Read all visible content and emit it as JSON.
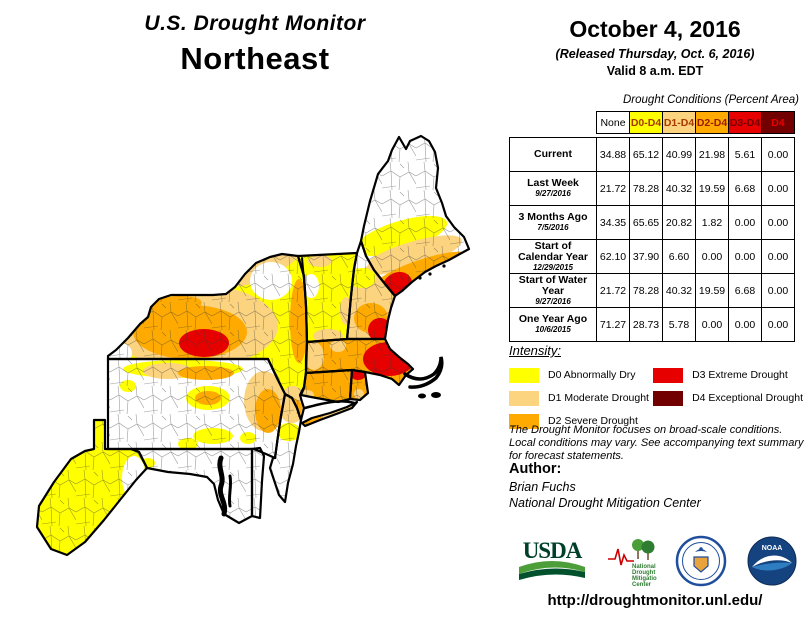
{
  "title": {
    "line1": "U.S. Drought Monitor",
    "line2": "Northeast"
  },
  "date_block": {
    "date": "October 4, 2016",
    "released": "(Released Thursday, Oct. 6, 2016)",
    "valid": "Valid  8 a.m. EDT"
  },
  "table": {
    "caption": "Drought Conditions (Percent Area)",
    "columns": [
      {
        "label": "None",
        "bg": "#FFFFFF",
        "fg": "#000000"
      },
      {
        "label": "D0-D4",
        "bg": "#FFFF00",
        "fg": "#A63A00"
      },
      {
        "label": "D1-D4",
        "bg": "#FCD37F",
        "fg": "#A63A00"
      },
      {
        "label": "D2-D4",
        "bg": "#FFAA00",
        "fg": "#9B1B00"
      },
      {
        "label": "D3-D4",
        "bg": "#E60000",
        "fg": "#730000"
      },
      {
        "label": "D4",
        "bg": "#730000",
        "fg": "#E60000"
      }
    ],
    "rows": [
      {
        "label": "Current",
        "date": "",
        "values": [
          "34.88",
          "65.12",
          "40.99",
          "21.98",
          "5.61",
          "0.00"
        ]
      },
      {
        "label": "Last Week",
        "date": "9/27/2016",
        "values": [
          "21.72",
          "78.28",
          "40.32",
          "19.59",
          "6.68",
          "0.00"
        ]
      },
      {
        "label": "3 Months Ago",
        "date": "7/5/2016",
        "values": [
          "34.35",
          "65.65",
          "20.82",
          "1.82",
          "0.00",
          "0.00"
        ]
      },
      {
        "label": "Start of Calendar Year",
        "date": "12/29/2015",
        "values": [
          "62.10",
          "37.90",
          "6.60",
          "0.00",
          "0.00",
          "0.00"
        ]
      },
      {
        "label": "Start of Water Year",
        "date": "9/27/2016",
        "values": [
          "21.72",
          "78.28",
          "40.32",
          "19.59",
          "6.68",
          "0.00"
        ]
      },
      {
        "label": "One Year Ago",
        "date": "10/6/2015",
        "values": [
          "71.27",
          "28.73",
          "5.78",
          "0.00",
          "0.00",
          "0.00"
        ]
      }
    ]
  },
  "intensity": {
    "title": "Intensity:",
    "items": [
      {
        "label": "D0 Abnormally Dry",
        "color": "#FFFF00"
      },
      {
        "label": "D1 Moderate Drought",
        "color": "#FCD37F"
      },
      {
        "label": "D2 Severe Drought",
        "color": "#FFAA00"
      },
      {
        "label": "D3 Extreme Drought",
        "color": "#E60000"
      },
      {
        "label": "D4 Exceptional Drought",
        "color": "#730000"
      }
    ]
  },
  "disclaimer": "The Drought Monitor focuses on broad-scale conditions. Local conditions may vary. See accompanying text summary for forecast statements.",
  "author": {
    "heading": "Author:",
    "name": "Brian Fuchs",
    "org": "National Drought Mitigation Center"
  },
  "logos": [
    {
      "name": "usda-logo",
      "label": "USDA"
    },
    {
      "name": "ndmc-logo",
      "label": "National Drought Mitigation Center"
    },
    {
      "name": "doc-seal",
      "label": ""
    },
    {
      "name": "noaa-logo",
      "label": "NOAA"
    }
  ],
  "footer": {
    "url": "http://droughtmonitor.unl.edu/"
  },
  "colors": {
    "none": "#FFFFFF",
    "d0": "#FFFF00",
    "d1": "#FCD37F",
    "d2": "#FFAA00",
    "d3": "#E60000",
    "d4": "#730000",
    "usda_green": "#00512C",
    "ndmc_green": "#2E7D32",
    "ndmc_red": "#CC0000",
    "doc_blue": "#1F4E9C",
    "noaa_blue": "#15437F"
  }
}
